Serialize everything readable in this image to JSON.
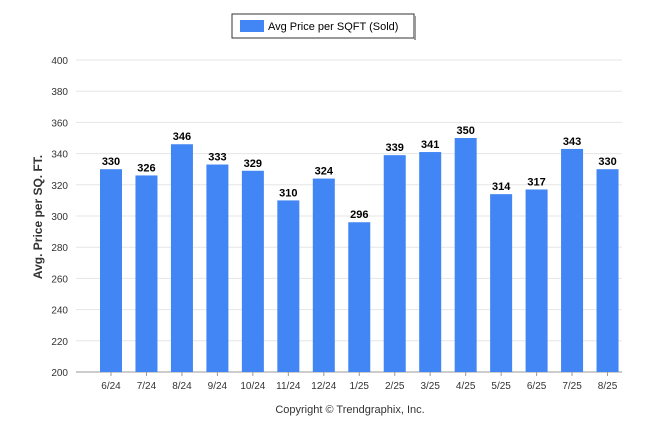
{
  "chart_data": {
    "type": "bar",
    "categories": [
      "6/24",
      "7/24",
      "8/24",
      "9/24",
      "10/24",
      "11/24",
      "12/24",
      "1/25",
      "2/25",
      "3/25",
      "4/25",
      "5/25",
      "6/25",
      "7/25",
      "8/25"
    ],
    "series": [
      {
        "name": "Avg Price per SQFT (Sold)",
        "values": [
          330,
          326,
          346,
          333,
          329,
          310,
          324,
          296,
          339,
          341,
          350,
          314,
          317,
          343,
          330
        ]
      }
    ],
    "ylabel": "Avg. Price per SQ. FT.",
    "xlabel": "",
    "ylim": [
      200,
      400
    ],
    "yticks": [
      200,
      220,
      240,
      260,
      280,
      300,
      320,
      340,
      360,
      380,
      400
    ],
    "grid": true,
    "legend_position": "top-center",
    "bar_color": "#4285f4"
  },
  "footer": {
    "copyright": "Copyright © Trendgraphix, Inc."
  }
}
